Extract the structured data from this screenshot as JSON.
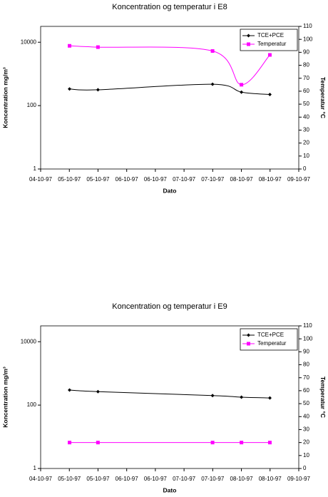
{
  "chart_data": [
    {
      "type": "line",
      "title": "Koncentration og temperatur i E8",
      "x_label": "Dato",
      "y_label": "Koncentration mg/m³",
      "y2_label": "Temperatur °C",
      "x": [
        4.56,
        5.11,
        7.33,
        7.89,
        8.44
      ],
      "xlim": [
        4,
        9
      ],
      "xticks": [
        {
          "value": 4,
          "label": "04-10-97"
        },
        {
          "value": 4.556,
          "label": "05-10-97"
        },
        {
          "value": 5.111,
          "label": "05-10-97"
        },
        {
          "value": 5.667,
          "label": "06-10-97"
        },
        {
          "value": 6.222,
          "label": "06-10-97"
        },
        {
          "value": 6.778,
          "label": "07-10-97"
        },
        {
          "value": 7.333,
          "label": "07-10-97"
        },
        {
          "value": 7.889,
          "label": "08-10-97"
        },
        {
          "value": 8.444,
          "label": "08-10-97"
        },
        {
          "value": 9,
          "label": "09-10-97"
        }
      ],
      "ylim": [
        1,
        31623
      ],
      "yticks": [
        1,
        100,
        10000
      ],
      "log_y": true,
      "y2lim": [
        0,
        110
      ],
      "y2ticks": [
        0,
        10,
        20,
        30,
        40,
        50,
        60,
        70,
        80,
        90,
        100,
        110
      ],
      "legend": "top-right",
      "smooth": true,
      "series": [
        {
          "name": "TCE+PCE",
          "color": "#000000",
          "marker": "diamond",
          "values": [
            335,
            316,
            473,
            266,
            224
          ]
        },
        {
          "name": "Temperatur",
          "color": "#ff00ff",
          "marker": "square",
          "axis": "y2",
          "values": [
            95,
            94,
            91,
            65,
            88
          ]
        }
      ]
    },
    {
      "type": "line",
      "title": "Koncentration og temperatur i E9",
      "x_label": "Dato",
      "y_label": "Koncentration mg/m³",
      "y2_label": "Temperatur °C",
      "x": [
        4.56,
        5.11,
        7.33,
        7.89,
        8.44
      ],
      "xlim": [
        4,
        9
      ],
      "xticks": [
        {
          "value": 4,
          "label": "04-10-97"
        },
        {
          "value": 4.556,
          "label": "05-10-97"
        },
        {
          "value": 5.111,
          "label": "05-10-97"
        },
        {
          "value": 5.667,
          "label": "06-10-97"
        },
        {
          "value": 6.222,
          "label": "06-10-97"
        },
        {
          "value": 6.778,
          "label": "07-10-97"
        },
        {
          "value": 7.333,
          "label": "07-10-97"
        },
        {
          "value": 7.889,
          "label": "08-10-97"
        },
        {
          "value": 8.444,
          "label": "08-10-97"
        },
        {
          "value": 9,
          "label": "09-10-97"
        }
      ],
      "ylim": [
        1,
        31623
      ],
      "yticks": [
        1,
        100,
        10000
      ],
      "log_y": true,
      "y2lim": [
        0,
        110
      ],
      "y2ticks": [
        0,
        10,
        20,
        30,
        40,
        50,
        60,
        70,
        80,
        90,
        100,
        110
      ],
      "legend": "top-right",
      "smooth": true,
      "series": [
        {
          "name": "TCE+PCE",
          "color": "#000000",
          "marker": "diamond",
          "values": [
            298,
            266,
            200,
            178,
            168
          ]
        },
        {
          "name": "Temperatur",
          "color": "#ff00ff",
          "marker": "square",
          "axis": "y2",
          "values": [
            20,
            20,
            20,
            20,
            20
          ]
        }
      ]
    }
  ]
}
